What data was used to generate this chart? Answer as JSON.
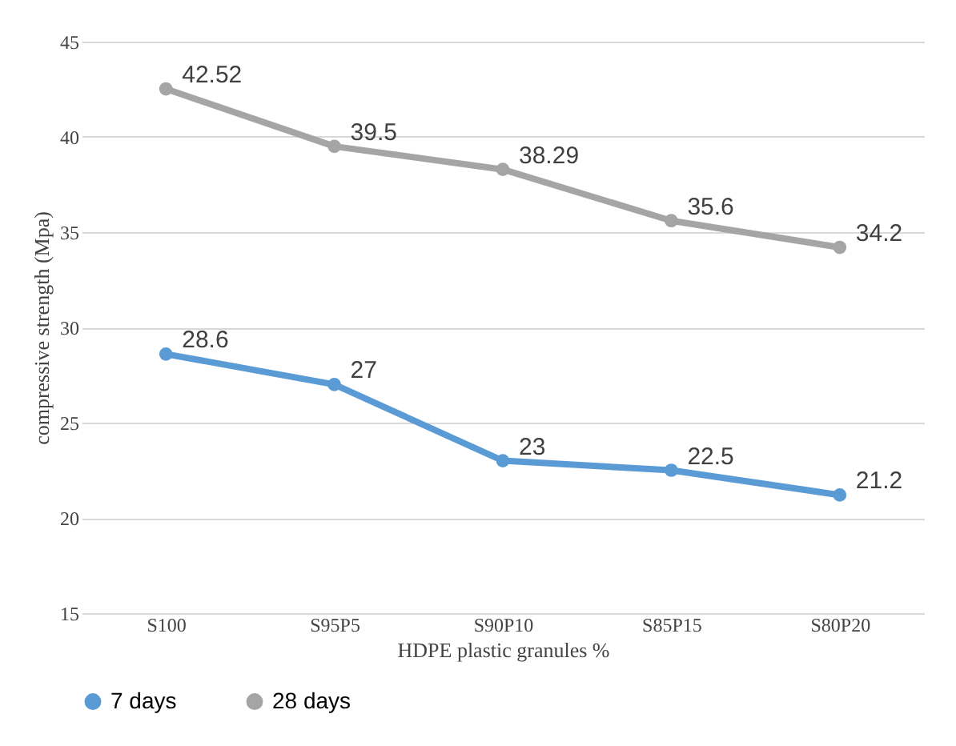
{
  "chart_data": {
    "type": "line",
    "xlabel": "HDPE plastic granules %",
    "ylabel": "compressive  strength (Mpa)",
    "categories": [
      "S100",
      "S95P5",
      "S90P10",
      "S85P15",
      "S80P20"
    ],
    "series": [
      {
        "name": "7 days",
        "color": "#5b9bd5",
        "values": [
          28.6,
          27,
          23,
          22.5,
          21.2
        ]
      },
      {
        "name": "28 days",
        "color": "#a5a5a5",
        "values": [
          42.52,
          39.5,
          38.29,
          35.6,
          34.2
        ]
      }
    ],
    "ylim": [
      15,
      45
    ],
    "yticks": [
      15,
      20,
      25,
      30,
      35,
      40,
      45
    ],
    "grid": "y",
    "legend": "bottom",
    "marker": "circle",
    "line_style": "solid",
    "data_labels": true
  }
}
